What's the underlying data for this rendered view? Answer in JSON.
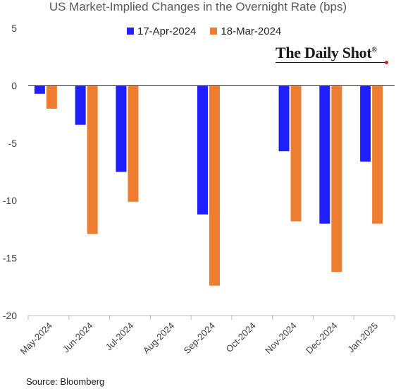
{
  "chart_data": {
    "type": "bar",
    "title": "US Market-Implied Changes in the Overnight Rate (bps)",
    "categories": [
      "May-2024",
      "Jun-2024",
      "Jul-2024",
      "Aug-2024",
      "Sep-2024",
      "Oct-2024",
      "Nov-2024",
      "Dec-2024",
      "Jan-2025"
    ],
    "series": [
      {
        "name": "17-Apr-2024",
        "color": "#1f1fff",
        "values": [
          -0.7,
          -3.4,
          -7.5,
          null,
          -11.2,
          null,
          -5.7,
          -12.0,
          -6.6
        ]
      },
      {
        "name": "18-Mar-2024",
        "color": "#ed7d31",
        "values": [
          -2.0,
          -12.9,
          -10.1,
          null,
          -17.4,
          null,
          -11.8,
          -16.2,
          -12.0
        ]
      }
    ],
    "ylim": [
      -20,
      5
    ],
    "yticks": [
      5,
      0,
      -5,
      -10,
      -15,
      -20
    ],
    "legend_position": "top-center",
    "grid": false
  },
  "brand": "The Daily Shot",
  "brand_mark": "®",
  "source": "Source: Bloomberg"
}
